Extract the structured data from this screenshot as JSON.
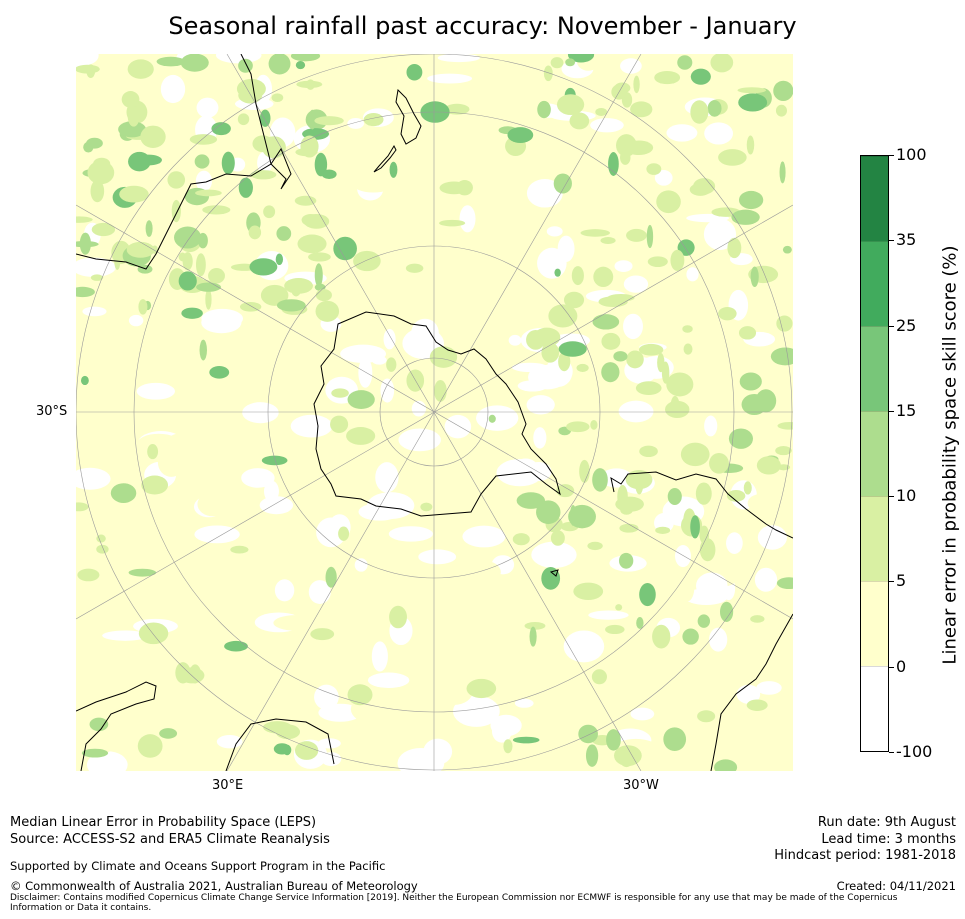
{
  "title": "Seasonal rainfall past accuracy: November - January",
  "map": {
    "lat_label": "30°S",
    "lon_labels": [
      "30°E",
      "30°W"
    ],
    "colors": {
      "land_outline": "#000000",
      "graticule": "#9a9a9a"
    }
  },
  "colorbar": {
    "label": "Linear error in probability space skill score (%)",
    "ticks": [
      "100",
      "35",
      "25",
      "15",
      "10",
      "5",
      "0",
      "-100"
    ],
    "colors": [
      "#ffffff",
      "#ffffcc",
      "#d9f0a3",
      "#addd8e",
      "#78c679",
      "#41ab5d",
      "#238443"
    ]
  },
  "footer": {
    "left_line1": "Median Linear Error in Probability Space (LEPS)",
    "left_line2": "Source: ACCESS-S2 and ERA5 Climate Reanalysis",
    "support": "Supported by Climate and Oceans Support Program in the Pacific",
    "copyright": "© Commonwealth of Australia 2021, Australian Bureau of Meteorology",
    "disclaimer_line1": "Disclaimer: Contains modified Copernicus Climate Change Service Information [2019]. Neither the European Commission nor ECMWF is responsible for any use that may be made of the Copernicus",
    "disclaimer_line2": "Information or Data it contains.",
    "run_date": "Run date: 9th August",
    "lead_time": "Lead time: 3 months",
    "hindcast": "Hindcast period: 1981-2018",
    "created": "Created: 04/11/2021"
  }
}
